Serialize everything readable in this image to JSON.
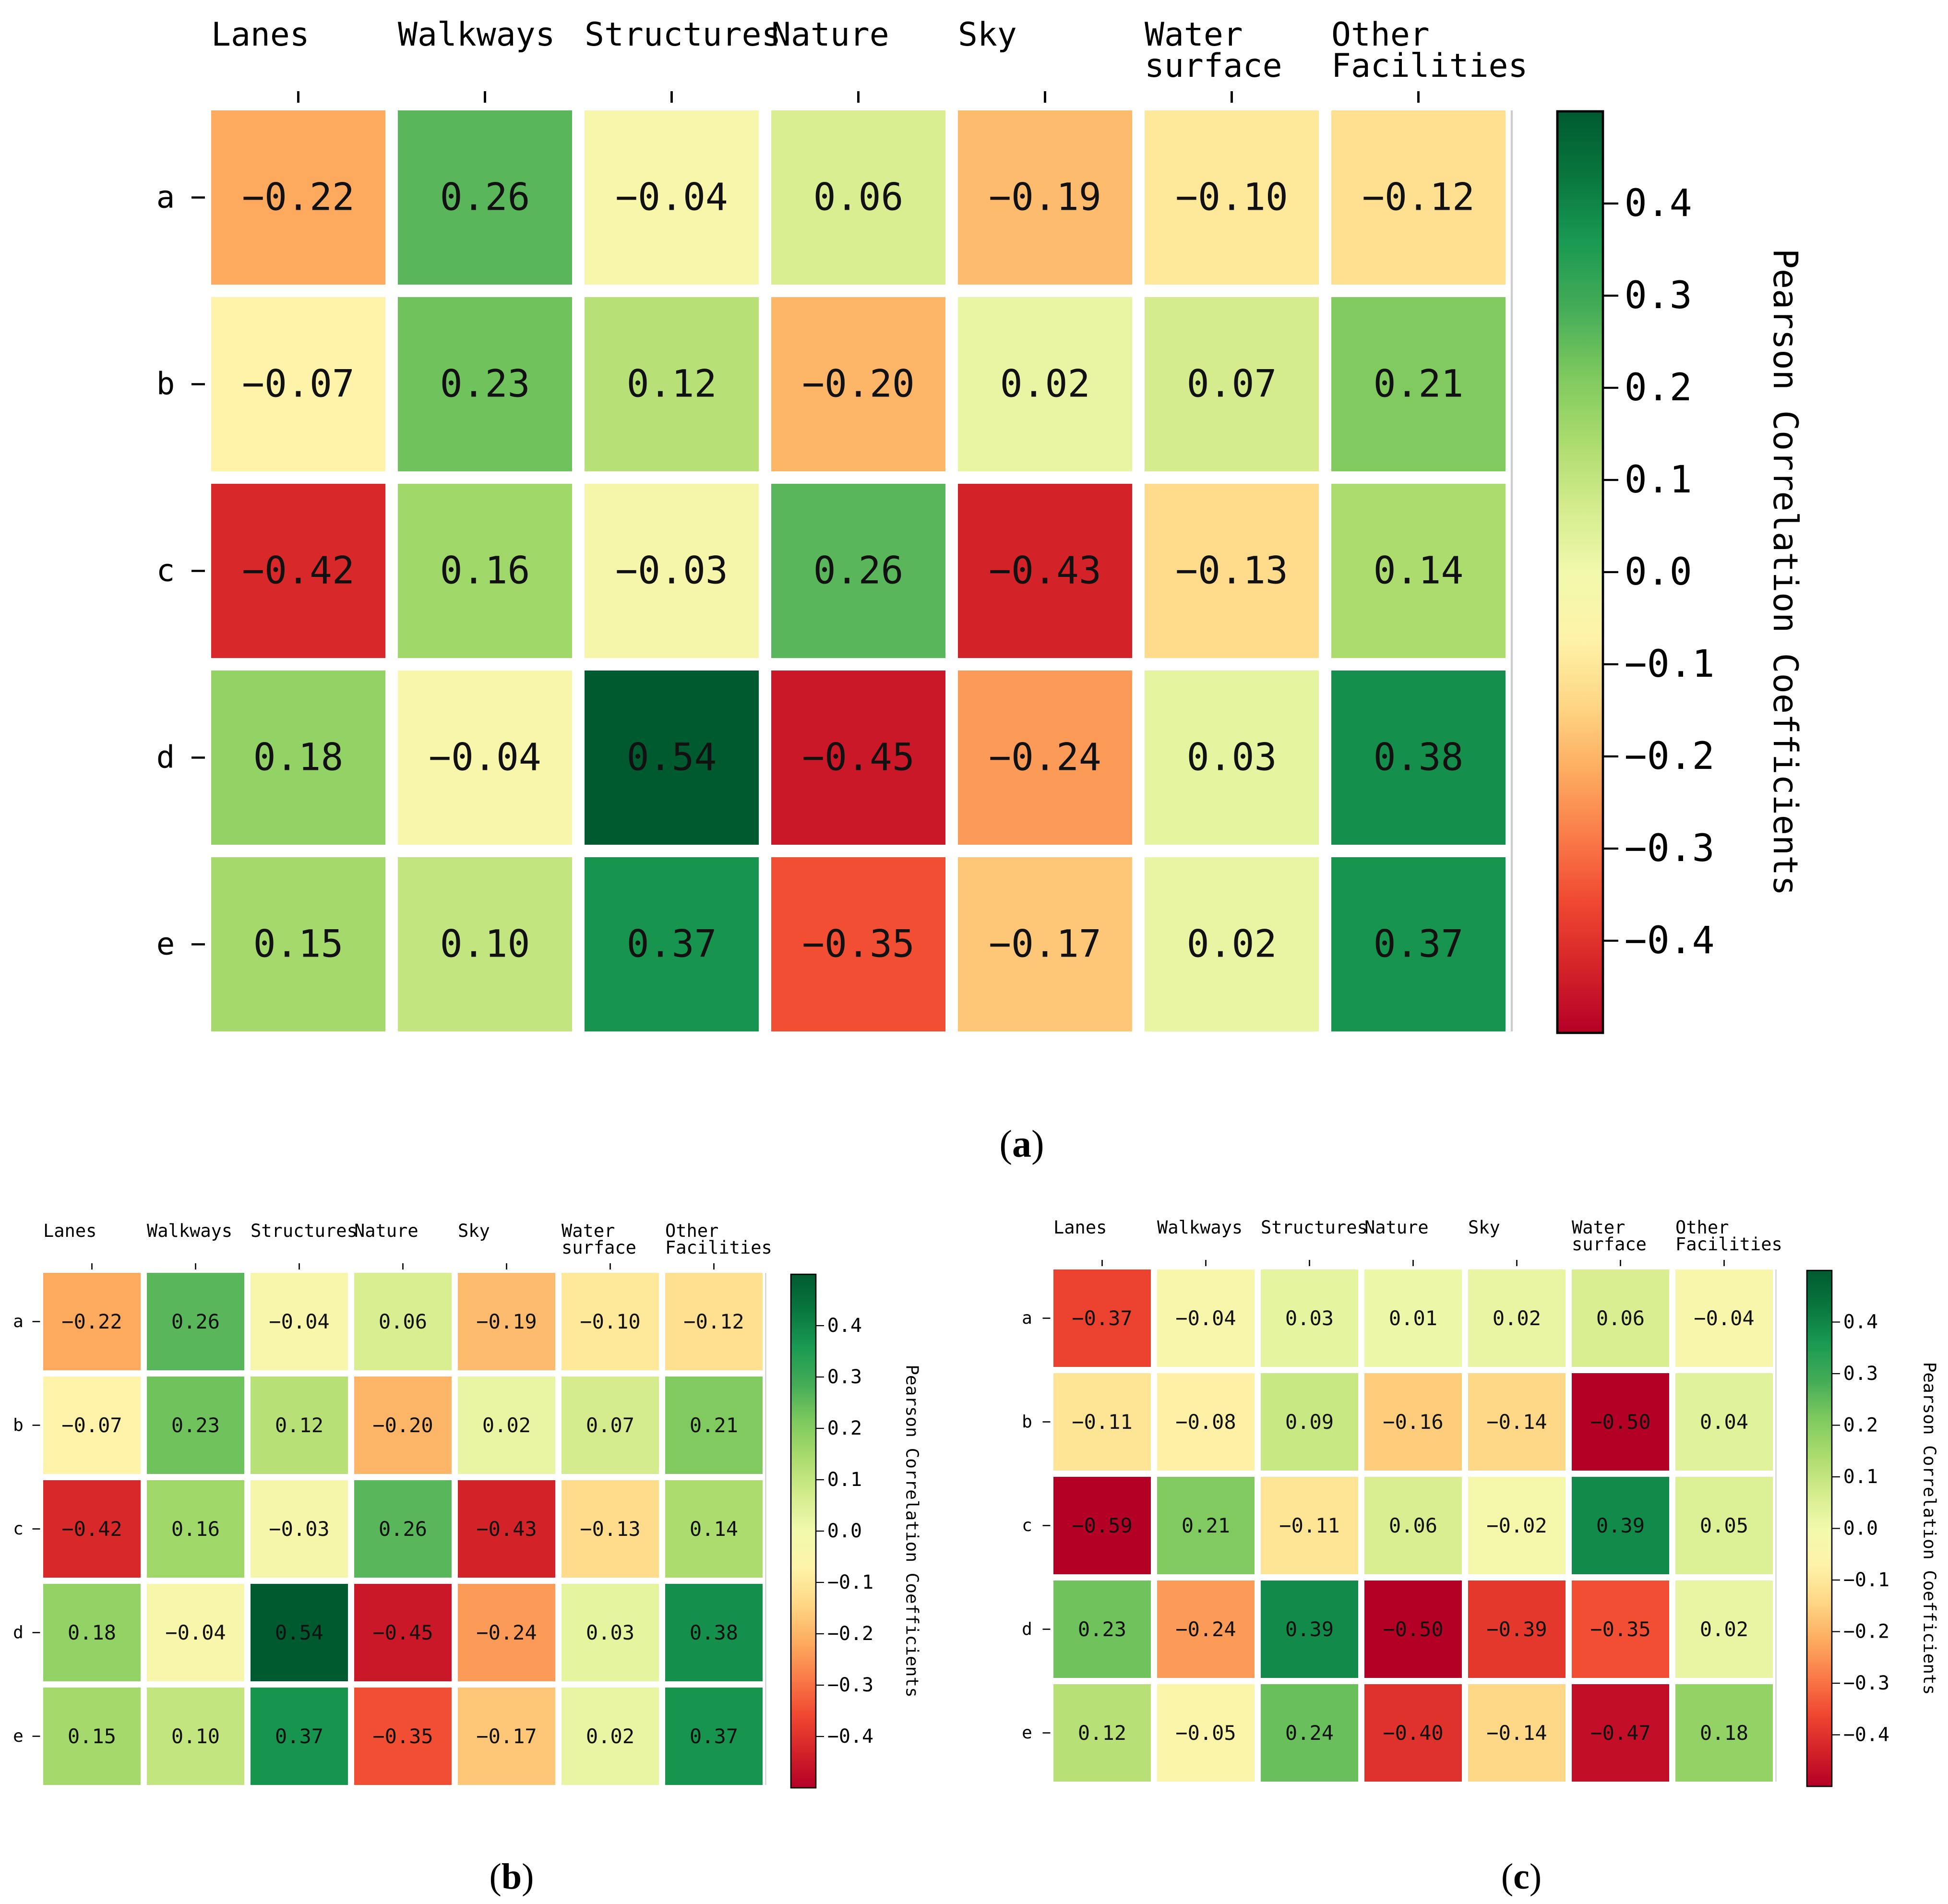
{
  "colorbar": {
    "label": "Pearson Correlation Coefficients",
    "ticks": [
      "0.4",
      "0.3",
      "0.2",
      "0.1",
      "0.0",
      "−0.1",
      "−0.2",
      "−0.3",
      "−0.4"
    ],
    "tick_values": [
      0.4,
      0.3,
      0.2,
      0.1,
      0.0,
      -0.1,
      -0.2,
      -0.3,
      -0.4
    ],
    "range": [
      -0.5,
      0.5
    ],
    "colors": [
      "#b50026",
      "#d52329",
      "#f04931",
      "#fa7c49",
      "#fdad60",
      "#fed785",
      "#fef3a8",
      "#f1f9ac",
      "#d3ec8c",
      "#aadb6d",
      "#7dc95e",
      "#44ac57",
      "#1a9a52",
      "#08773e",
      "#005a30"
    ]
  },
  "chart_data": [
    {
      "type": "heatmap",
      "caption": "(a)",
      "x_labels": [
        [
          "Lanes"
        ],
        [
          "Walkways"
        ],
        [
          "Structures"
        ],
        [
          "Nature"
        ],
        [
          "Sky"
        ],
        [
          "Water",
          "surface"
        ],
        [
          "Other",
          "Facilities"
        ]
      ],
      "y_labels": [
        "a",
        "b",
        "c",
        "d",
        "e"
      ],
      "values": [
        [
          -0.22,
          0.26,
          -0.04,
          0.06,
          -0.19,
          -0.1,
          -0.12
        ],
        [
          -0.07,
          0.23,
          0.12,
          -0.2,
          0.02,
          0.07,
          0.21
        ],
        [
          -0.42,
          0.16,
          -0.03,
          0.26,
          -0.43,
          -0.13,
          0.14
        ],
        [
          0.18,
          -0.04,
          0.54,
          -0.45,
          -0.24,
          0.03,
          0.38
        ],
        [
          0.15,
          0.1,
          0.37,
          -0.35,
          -0.17,
          0.02,
          0.37
        ]
      ],
      "colorbar_label": "Pearson Correlation Coefficients"
    },
    {
      "type": "heatmap",
      "caption": "(b)",
      "x_labels": [
        [
          "Lanes"
        ],
        [
          "Walkways"
        ],
        [
          "Structures"
        ],
        [
          "Nature"
        ],
        [
          "Sky"
        ],
        [
          "Water",
          "surface"
        ],
        [
          "Other",
          "Facilities"
        ]
      ],
      "y_labels": [
        "a",
        "b",
        "c",
        "d",
        "e"
      ],
      "values": [
        [
          -0.22,
          0.26,
          -0.04,
          0.06,
          -0.19,
          -0.1,
          -0.12
        ],
        [
          -0.07,
          0.23,
          0.12,
          -0.2,
          0.02,
          0.07,
          0.21
        ],
        [
          -0.42,
          0.16,
          -0.03,
          0.26,
          -0.43,
          -0.13,
          0.14
        ],
        [
          0.18,
          -0.04,
          0.54,
          -0.45,
          -0.24,
          0.03,
          0.38
        ],
        [
          0.15,
          0.1,
          0.37,
          -0.35,
          -0.17,
          0.02,
          0.37
        ]
      ],
      "colorbar_label": "Pearson Correlation Coefficients"
    },
    {
      "type": "heatmap",
      "caption": "(c)",
      "x_labels": [
        [
          "Lanes"
        ],
        [
          "Walkways"
        ],
        [
          "Structures"
        ],
        [
          "Nature"
        ],
        [
          "Sky"
        ],
        [
          "Water",
          "surface"
        ],
        [
          "Other",
          "Facilities"
        ]
      ],
      "y_labels": [
        "a",
        "b",
        "c",
        "d",
        "e"
      ],
      "values": [
        [
          -0.37,
          -0.04,
          0.03,
          0.01,
          0.02,
          0.06,
          -0.04
        ],
        [
          -0.11,
          -0.08,
          0.09,
          -0.16,
          -0.14,
          -0.5,
          0.04
        ],
        [
          -0.59,
          0.21,
          -0.11,
          0.06,
          -0.02,
          0.39,
          0.05
        ],
        [
          0.23,
          -0.24,
          0.39,
          -0.5,
          -0.39,
          -0.35,
          0.02
        ],
        [
          0.12,
          -0.05,
          0.24,
          -0.4,
          -0.14,
          -0.47,
          0.18
        ]
      ],
      "colorbar_label": "Pearson Correlation Coefficients"
    }
  ]
}
